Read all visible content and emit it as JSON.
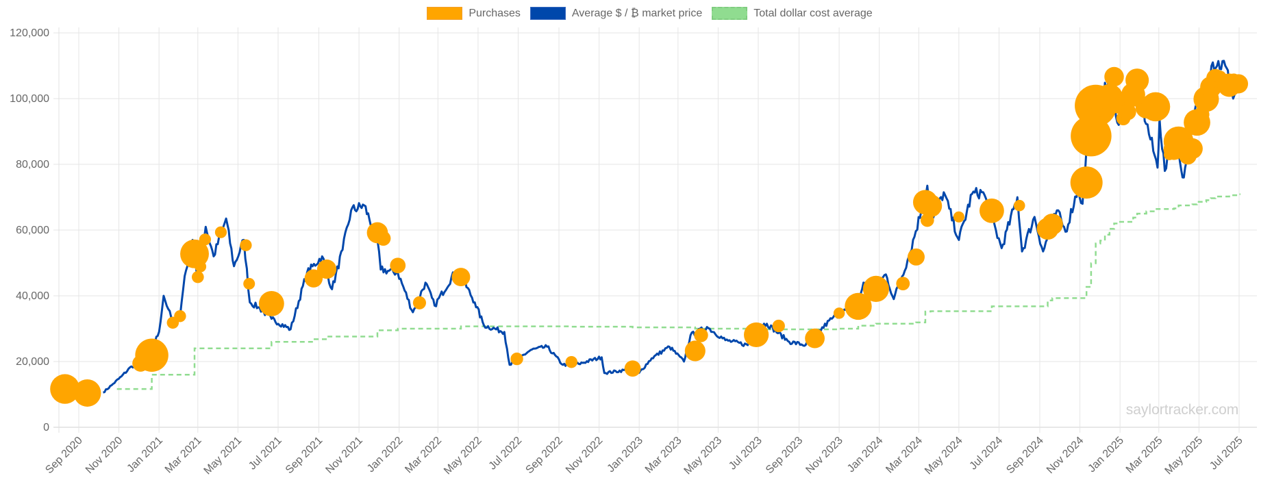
{
  "chart_data": {
    "type": "line",
    "legend_position": "top",
    "grid": true,
    "watermark": "saylortracker.com",
    "ylim": [
      0,
      120000
    ],
    "y_ticks": [
      "0",
      "20,000",
      "40,000",
      "60,000",
      "80,000",
      "100,000",
      "120,000"
    ],
    "x_ticks": [
      "Sep 2020",
      "Nov 2020",
      "Jan 2021",
      "Mar 2021",
      "May 2021",
      "Jul 2021",
      "Sep 2021",
      "Nov 2021",
      "Jan 2022",
      "Mar 2022",
      "May 2022",
      "Jul 2022",
      "Sep 2022",
      "Nov 2022",
      "Jan 2023",
      "Mar 2023",
      "May 2023",
      "Jul 2023",
      "Sep 2023",
      "Nov 2023",
      "Jan 2024",
      "Mar 2024",
      "May 2024",
      "Jul 2024",
      "Sep 2024",
      "Nov 2024",
      "Jan 2025",
      "Mar 2025",
      "May 2025",
      "Jul 2025"
    ],
    "colors": {
      "purchases": "#FFA500",
      "price": "#0047AB",
      "dca": "#90DC90"
    },
    "series": [
      {
        "name": "Purchases",
        "kind": "bubble",
        "points": [
          [
            "2020-08-11",
            11652,
            21454
          ],
          [
            "2020-09-14",
            10419,
            16796
          ],
          [
            "2020-12-04",
            19427,
            2574
          ],
          [
            "2020-12-21",
            21925,
            29646
          ],
          [
            "2021-01-22",
            31808,
            314
          ],
          [
            "2021-02-02",
            33808,
            295
          ],
          [
            "2021-02-24",
            52765,
            19452
          ],
          [
            "2021-03-01",
            45710,
            328
          ],
          [
            "2021-03-05",
            48888,
            205
          ],
          [
            "2021-03-12",
            57146,
            262
          ],
          [
            "2021-04-05",
            59339,
            253
          ],
          [
            "2021-05-13",
            55387,
            271
          ],
          [
            "2021-05-18",
            43663,
            229
          ],
          [
            "2021-06-21",
            37617,
            13005
          ],
          [
            "2021-08-24",
            45294,
            3907
          ],
          [
            "2021-09-13",
            48099,
            5050
          ],
          [
            "2021-11-29",
            59187,
            7002
          ],
          [
            "2021-12-08",
            57477,
            1434
          ],
          [
            "2021-12-30",
            49229,
            1914
          ],
          [
            "2022-02-01",
            37865,
            660
          ],
          [
            "2022-04-05",
            45714,
            4167
          ],
          [
            "2022-06-29",
            20817,
            480
          ],
          [
            "2022-09-20",
            19851,
            301
          ],
          [
            "2022-12-22",
            17871,
            2395
          ],
          [
            "2023-03-27",
            23238,
            6455
          ],
          [
            "2023-04-05",
            28016,
            1045
          ],
          [
            "2023-06-28",
            28136,
            12333
          ],
          [
            "2023-08-01",
            30835,
            467
          ],
          [
            "2023-09-25",
            27053,
            5445
          ],
          [
            "2023-11-01",
            34706,
            155
          ],
          [
            "2023-11-30",
            36785,
            16130
          ],
          [
            "2023-12-27",
            42110,
            14620
          ],
          [
            "2024-02-06",
            43723,
            850
          ],
          [
            "2024-02-26",
            51813,
            3000
          ],
          [
            "2024-03-11",
            68477,
            12000
          ],
          [
            "2024-03-19",
            67382,
            9245
          ],
          [
            "2024-03-14",
            63000,
            800
          ],
          [
            "2024-05-01",
            64000,
            122
          ],
          [
            "2024-06-20",
            65883,
            11931
          ],
          [
            "2024-08-01",
            67455,
            169
          ],
          [
            "2024-09-13",
            60408,
            8110
          ],
          [
            "2024-09-20",
            61750,
            7420
          ],
          [
            "2024-11-11",
            74463,
            27200
          ],
          [
            "2024-11-18",
            88627,
            51780
          ],
          [
            "2024-11-25",
            97862,
            55500
          ],
          [
            "2024-12-02",
            95976,
            15400
          ],
          [
            "2024-12-09",
            98783,
            21550
          ],
          [
            "2024-12-16",
            100386,
            15350
          ],
          [
            "2024-12-23",
            106662,
            5262
          ],
          [
            "2024-12-30",
            97837,
            2138
          ],
          [
            "2025-01-06",
            94004,
            1070
          ],
          [
            "2025-01-13",
            95972,
            2530
          ],
          [
            "2025-01-21",
            101191,
            11000
          ],
          [
            "2025-01-27",
            105596,
            10107
          ],
          [
            "2025-02-10",
            97255,
            7633
          ],
          [
            "2025-02-24",
            97514,
            20356
          ],
          [
            "2025-03-17",
            82981,
            130
          ],
          [
            "2025-03-24",
            84529,
            6911
          ],
          [
            "2025-03-31",
            86969,
            22048
          ],
          [
            "2025-04-14",
            82618,
            3459
          ],
          [
            "2025-04-21",
            84785,
            6556
          ],
          [
            "2025-04-28",
            92737,
            15355
          ],
          [
            "2025-05-05",
            95167,
            1895
          ],
          [
            "2025-05-12",
            99856,
            13390
          ],
          [
            "2025-05-19",
            103498,
            7390
          ],
          [
            "2025-05-26",
            106237,
            4020
          ],
          [
            "2025-06-02",
            106495,
            705
          ],
          [
            "2025-06-09",
            105426,
            1045
          ],
          [
            "2025-06-16",
            104080,
            10100
          ],
          [
            "2025-06-23",
            105856,
            245
          ],
          [
            "2025-06-30",
            104500,
            4980
          ]
        ]
      },
      {
        "name": "Average $ / ₿ market price",
        "kind": "line",
        "points": [
          [
            "2020-10-08",
            10600
          ],
          [
            "2020-10-21",
            12800
          ],
          [
            "2020-11-05",
            15500
          ],
          [
            "2020-11-20",
            18500
          ],
          [
            "2020-12-01",
            19000
          ],
          [
            "2020-12-16",
            21300
          ],
          [
            "2021-01-01",
            29000
          ],
          [
            "2021-01-08",
            40000
          ],
          [
            "2021-01-15",
            36000
          ],
          [
            "2021-01-22",
            31800
          ],
          [
            "2021-02-02",
            33800
          ],
          [
            "2021-02-09",
            46000
          ],
          [
            "2021-02-21",
            57000
          ],
          [
            "2021-02-28",
            45500
          ],
          [
            "2021-03-13",
            61000
          ],
          [
            "2021-03-25",
            52000
          ],
          [
            "2021-04-13",
            63500
          ],
          [
            "2021-04-25",
            49000
          ],
          [
            "2021-05-10",
            57000
          ],
          [
            "2021-05-19",
            38000
          ],
          [
            "2021-06-01",
            36500
          ],
          [
            "2021-06-21",
            33000
          ],
          [
            "2021-07-20",
            29800
          ],
          [
            "2021-08-14",
            47000
          ],
          [
            "2021-09-06",
            52000
          ],
          [
            "2021-09-21",
            42000
          ],
          [
            "2021-10-07",
            54000
          ],
          [
            "2021-10-20",
            66000
          ],
          [
            "2021-11-09",
            67500
          ],
          [
            "2021-11-29",
            57000
          ],
          [
            "2021-12-04",
            48000
          ],
          [
            "2021-12-30",
            47000
          ],
          [
            "2022-01-22",
            35000
          ],
          [
            "2022-02-10",
            44000
          ],
          [
            "2022-02-24",
            37000
          ],
          [
            "2022-03-28",
            47500
          ],
          [
            "2022-04-05",
            46000
          ],
          [
            "2022-04-26",
            38000
          ],
          [
            "2022-05-10",
            31000
          ],
          [
            "2022-06-10",
            29000
          ],
          [
            "2022-06-18",
            19000
          ],
          [
            "2022-07-20",
            23500
          ],
          [
            "2022-08-14",
            24500
          ],
          [
            "2022-09-07",
            19000
          ],
          [
            "2022-10-01",
            19300
          ],
          [
            "2022-11-05",
            21300
          ],
          [
            "2022-11-09",
            16500
          ],
          [
            "2022-12-15",
            17500
          ],
          [
            "2023-01-01",
            16600
          ],
          [
            "2023-01-20",
            21000
          ],
          [
            "2023-02-16",
            24500
          ],
          [
            "2023-03-10",
            20000
          ],
          [
            "2023-03-20",
            28000
          ],
          [
            "2023-04-14",
            30500
          ],
          [
            "2023-05-12",
            26500
          ],
          [
            "2023-06-15",
            25000
          ],
          [
            "2023-06-23",
            30500
          ],
          [
            "2023-07-14",
            31500
          ],
          [
            "2023-08-17",
            26000
          ],
          [
            "2023-09-11",
            25000
          ],
          [
            "2023-10-23",
            33500
          ],
          [
            "2023-11-30",
            37500
          ],
          [
            "2023-12-08",
            44000
          ],
          [
            "2023-12-27",
            43000
          ],
          [
            "2024-01-11",
            46500
          ],
          [
            "2024-01-23",
            39000
          ],
          [
            "2024-02-15",
            52000
          ],
          [
            "2024-03-05",
            66000
          ],
          [
            "2024-03-14",
            73500
          ],
          [
            "2024-03-20",
            62000
          ],
          [
            "2024-04-08",
            71500
          ],
          [
            "2024-05-01",
            57000
          ],
          [
            "2024-05-21",
            71000
          ],
          [
            "2024-06-07",
            71500
          ],
          [
            "2024-07-05",
            54500
          ],
          [
            "2024-07-29",
            70000
          ],
          [
            "2024-08-05",
            53500
          ],
          [
            "2024-08-24",
            64000
          ],
          [
            "2024-09-06",
            53500
          ],
          [
            "2024-09-27",
            66000
          ],
          [
            "2024-10-10",
            59500
          ],
          [
            "2024-10-29",
            72500
          ],
          [
            "2024-11-05",
            68000
          ],
          [
            "2024-11-13",
            90000
          ],
          [
            "2024-11-22",
            99000
          ],
          [
            "2024-12-05",
            100000
          ],
          [
            "2024-12-17",
            107000
          ],
          [
            "2024-12-30",
            92000
          ],
          [
            "2025-01-07",
            95000
          ],
          [
            "2025-01-20",
            108000
          ],
          [
            "2025-02-01",
            100000
          ],
          [
            "2025-02-27",
            79000
          ],
          [
            "2025-03-02",
            94000
          ],
          [
            "2025-03-10",
            78000
          ],
          [
            "2025-03-25",
            88000
          ],
          [
            "2025-04-08",
            76000
          ],
          [
            "2025-04-22",
            93500
          ],
          [
            "2025-05-08",
            103000
          ],
          [
            "2025-05-22",
            111000
          ],
          [
            "2025-06-10",
            110000
          ],
          [
            "2025-06-22",
            100000
          ],
          [
            "2025-07-01",
            107000
          ]
        ]
      },
      {
        "name": "Total dollar cost average",
        "kind": "step",
        "points": [
          [
            "2020-10-29",
            11650
          ],
          [
            "2020-12-21",
            16000
          ],
          [
            "2021-02-24",
            24000
          ],
          [
            "2021-06-21",
            26000
          ],
          [
            "2021-08-24",
            26800
          ],
          [
            "2021-09-13",
            27600
          ],
          [
            "2021-11-29",
            29500
          ],
          [
            "2021-12-30",
            30000
          ],
          [
            "2022-04-05",
            30700
          ],
          [
            "2022-09-20",
            30600
          ],
          [
            "2022-12-22",
            30400
          ],
          [
            "2023-03-27",
            30000
          ],
          [
            "2023-06-28",
            29800
          ],
          [
            "2023-11-01",
            30000
          ],
          [
            "2023-11-30",
            30900
          ],
          [
            "2023-12-27",
            31500
          ],
          [
            "2024-02-26",
            31900
          ],
          [
            "2024-03-11",
            35200
          ],
          [
            "2024-03-19",
            35300
          ],
          [
            "2024-06-20",
            36800
          ],
          [
            "2024-09-13",
            38600
          ],
          [
            "2024-09-20",
            39300
          ],
          [
            "2024-11-11",
            42700
          ],
          [
            "2024-11-18",
            49900
          ],
          [
            "2024-11-25",
            55900
          ],
          [
            "2024-12-02",
            56800
          ],
          [
            "2024-12-09",
            58600
          ],
          [
            "2024-12-16",
            60400
          ],
          [
            "2024-12-23",
            62000
          ],
          [
            "2024-12-30",
            62500
          ],
          [
            "2025-01-21",
            63800
          ],
          [
            "2025-01-27",
            65000
          ],
          [
            "2025-02-10",
            65700
          ],
          [
            "2025-02-24",
            66400
          ],
          [
            "2025-03-24",
            66600
          ],
          [
            "2025-03-31",
            67500
          ],
          [
            "2025-04-21",
            67800
          ],
          [
            "2025-04-28",
            68600
          ],
          [
            "2025-05-12",
            69100
          ],
          [
            "2025-05-19",
            69700
          ],
          [
            "2025-05-26",
            70200
          ],
          [
            "2025-06-16",
            70600
          ],
          [
            "2025-06-30",
            70900
          ],
          [
            "2025-07-03",
            70900
          ]
        ]
      }
    ]
  }
}
